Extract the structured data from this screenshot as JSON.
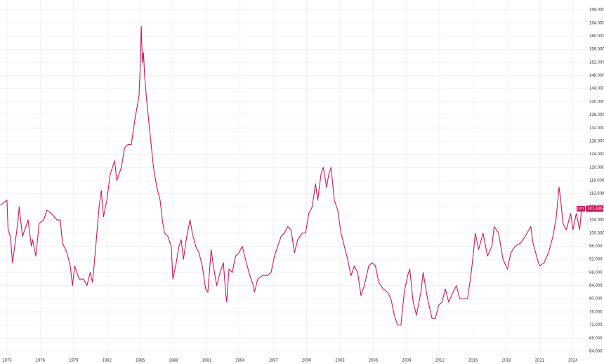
{
  "chart_data": {
    "type": "line",
    "series": [
      {
        "name": "DXY",
        "color": "#c8185e",
        "x": [
          1972.4,
          1972.8,
          1973.0,
          1973.1,
          1973.3,
          1973.5,
          1973.7,
          1974.0,
          1974.1,
          1974.4,
          1974.6,
          1974.9,
          1975.2,
          1975.3,
          1975.6,
          1975.9,
          1976.3,
          1976.6,
          1977.0,
          1977.5,
          1977.8,
          1978.0,
          1978.4,
          1978.7,
          1978.9,
          1979.1,
          1979.5,
          1979.9,
          1980.2,
          1980.5,
          1980.7,
          1980.9,
          1981.0,
          1981.3,
          1981.5,
          1981.7,
          1982.0,
          1982.3,
          1982.7,
          1982.9,
          1983.3,
          1983.6,
          1983.9,
          1984.2,
          1984.5,
          1984.9,
          1985.0,
          1985.1,
          1985.2,
          1985.3,
          1985.4,
          1985.6,
          1985.9,
          1986.2,
          1986.5,
          1986.8,
          1987.0,
          1987.2,
          1987.5,
          1987.8,
          1987.95,
          1988.2,
          1988.5,
          1988.7,
          1988.9,
          1989.2,
          1989.5,
          1989.7,
          1990.0,
          1990.3,
          1990.6,
          1990.9,
          1991.1,
          1991.4,
          1991.6,
          1991.9,
          1992.2,
          1992.5,
          1992.7,
          1992.8,
          1993.0,
          1993.3,
          1993.6,
          1993.9,
          1994.2,
          1994.5,
          1994.8,
          1995.2,
          1995.3,
          1995.6,
          1996.0,
          1996.4,
          1996.8,
          1997.1,
          1997.4,
          1997.7,
          1998.0,
          1998.3,
          1998.6,
          1998.9,
          1999.2,
          1999.6,
          1999.9,
          2000.2,
          2000.5,
          2000.8,
          2001.0,
          2001.3,
          2001.5,
          2001.8,
          2002.0,
          2002.2,
          2002.5,
          2002.8,
          2003.1,
          2003.4,
          2003.7,
          2004.0,
          2004.3,
          2004.6,
          2004.9,
          2005.2,
          2005.6,
          2005.9,
          2006.2,
          2006.5,
          2006.9,
          2007.3,
          2007.6,
          2007.9,
          2008.2,
          2008.5,
          2008.8,
          2009.1,
          2009.3,
          2009.6,
          2009.9,
          2010.3,
          2010.5,
          2010.9,
          2011.3,
          2011.6,
          2011.9,
          2012.2,
          2012.5,
          2012.8,
          2013.2,
          2013.5,
          2013.8,
          2014.2,
          2014.5,
          2014.8,
          2015.0,
          2015.2,
          2015.5,
          2015.9,
          2016.3,
          2016.7,
          2016.9,
          2017.3,
          2017.7,
          2018.1,
          2018.4,
          2018.8,
          2019.3,
          2019.7,
          2020.2,
          2020.4,
          2020.8,
          2021.0,
          2021.4,
          2021.8,
          2022.2,
          2022.5,
          2022.75,
          2022.9,
          2023.1,
          2023.4,
          2023.8,
          2024.0,
          2024.3,
          2024.6,
          2024.8,
          2025.0
        ],
        "values": [
          108.5,
          109.5,
          110,
          101,
          99,
          91,
          96,
          104,
          108,
          99,
          101,
          104,
          96,
          98,
          93,
          103,
          104,
          107,
          106,
          104,
          104,
          97,
          94,
          90,
          84,
          90,
          86,
          86,
          84,
          88,
          85,
          92,
          96,
          108,
          113,
          105,
          110,
          118,
          122,
          116,
          120,
          126,
          127,
          127,
          134,
          142,
          150,
          163,
          152,
          155,
          148,
          140,
          130,
          120,
          114,
          110,
          104,
          100,
          99,
          96,
          86,
          90,
          96,
          98,
          92,
          99,
          104,
          100,
          96,
          94,
          90,
          83,
          82,
          95,
          90,
          84,
          88,
          91,
          82,
          79,
          89,
          88,
          93,
          94,
          96,
          92,
          88,
          84,
          82,
          86,
          87,
          87,
          88,
          93,
          96,
          99,
          100,
          102,
          101,
          94,
          98,
          100,
          100,
          106,
          108,
          115,
          110,
          118,
          120,
          114,
          118,
          120,
          110,
          107,
          100,
          96,
          92,
          87,
          90,
          88,
          81,
          84,
          90,
          91,
          90,
          85,
          83,
          82,
          80,
          75,
          72,
          72,
          82,
          87,
          89,
          79,
          75,
          82,
          88,
          80,
          74,
          74,
          78,
          79,
          83,
          79,
          82,
          84,
          80,
          80,
          80,
          87,
          93,
          100,
          95,
          100,
          93,
          96,
          102,
          100,
          92,
          89,
          94,
          96,
          97,
          99,
          102,
          97,
          92,
          90,
          91,
          94,
          99,
          105,
          114,
          110,
          103,
          101,
          106,
          101,
          106,
          101,
          108,
          107.436
        ]
      }
    ],
    "xlim": [
      1972.37,
      2025.09
    ],
    "xticks": [
      1973,
      1976,
      1979,
      1982,
      1985,
      1988,
      1991,
      1994,
      1997,
      2000,
      2003,
      2006,
      2009,
      2012,
      2015,
      2018,
      2021,
      2024
    ],
    "ylim": [
      62.7,
      171
    ],
    "yticks": [
      {
        "value": 64,
        "label": "64.000"
      },
      {
        "value": 68,
        "label": "68.000"
      },
      {
        "value": 72,
        "label": "72.000"
      },
      {
        "value": 76,
        "label": "76.000"
      },
      {
        "value": 80,
        "label": "80.000"
      },
      {
        "value": 84,
        "label": "84.000"
      },
      {
        "value": 88,
        "label": "88.000"
      },
      {
        "value": 92,
        "label": "92.000"
      },
      {
        "value": 96,
        "label": "96.000"
      },
      {
        "value": 100,
        "label": "100.000"
      },
      {
        "value": 104,
        "label": "104.000"
      },
      {
        "value": 108,
        "label": "108.000"
      },
      {
        "value": 112,
        "label": "112.000"
      },
      {
        "value": 116,
        "label": "116.000"
      },
      {
        "value": 120,
        "label": "120.000"
      },
      {
        "value": 124,
        "label": "124.000"
      },
      {
        "value": 128,
        "label": "128.000"
      },
      {
        "value": 132,
        "label": "132.000"
      },
      {
        "value": 136,
        "label": "136.000"
      },
      {
        "value": 140,
        "label": "140.000"
      },
      {
        "value": 144,
        "label": "144.000"
      },
      {
        "value": 148,
        "label": "148.000"
      },
      {
        "value": 152,
        "label": "152.000"
      },
      {
        "value": 156,
        "label": "156.000"
      },
      {
        "value": 160,
        "label": "160.000"
      },
      {
        "value": 164,
        "label": "164.000"
      },
      {
        "value": 168,
        "label": "168.000"
      }
    ],
    "grid": true
  }
}
